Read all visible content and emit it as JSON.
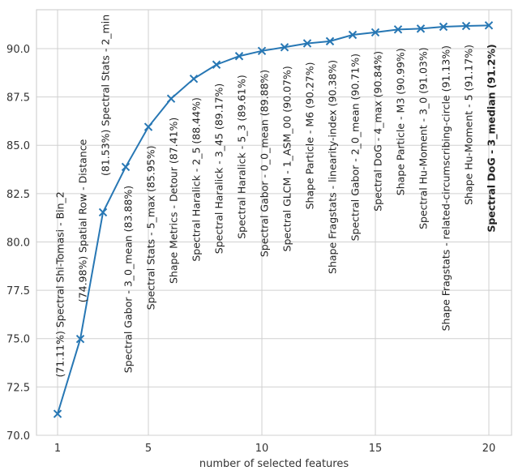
{
  "chart_data": {
    "type": "line",
    "x_label": "number of selected features",
    "x": [
      1,
      2,
      3,
      4,
      5,
      6,
      7,
      8,
      9,
      10,
      11,
      12,
      13,
      14,
      15,
      16,
      17,
      18,
      19,
      20
    ],
    "values": [
      71.11,
      74.98,
      81.53,
      83.88,
      85.95,
      87.41,
      88.44,
      89.17,
      89.61,
      89.88,
      90.07,
      90.27,
      90.38,
      90.71,
      90.84,
      90.99,
      91.03,
      91.13,
      91.17,
      91.2
    ],
    "annotations": [
      "(71.11%) Spectral Shi-Tomasi - Bin_2",
      "(74.98%) Spatial Row - Distance",
      "(81.53%) Spectral Stats - 2_min",
      "Spectral Gabor - 3_0_mean (83.88%)",
      "Spectral Stats - 5_max (85.95%)",
      "Shape Metrics - Detour (87.41%)",
      "Spectral Haralick - 2_5 (88.44%)",
      "Spectral Haralick - 3_45 (89.17%)",
      "Spectral Haralick - 5_3 (89.61%)",
      "Spectral Gabor - 0_0_mean (89.88%)",
      "Spectral GLCM - 1_ASM_00 (90.07%)",
      "Shape Particle - M6 (90.27%)",
      "Shape Fragstats - linearity-index (90.38%)",
      "Spectral Gabor - 2_0_mean (90.71%)",
      "Spectral DoG - 4_max (90.84%)",
      "Shape Particle - M3 (90.99%)",
      "Spectral Hu-Moment - 3_0 (91.03%)",
      "Shape Fragstats - related-circumscribing-circle (91.13%)",
      "Shape Hu-Moment - 5 (91.17%)",
      "Spectral DoG - 3_median (91.2%)"
    ],
    "color": "#2777b4",
    "marker": "x",
    "xlim": [
      0.07,
      21
    ],
    "xticks": [
      1,
      5,
      10,
      15,
      20
    ],
    "ylim": [
      70,
      92.01
    ],
    "yticks": [
      {
        "value": 70,
        "label": "70.0"
      },
      {
        "value": 72.5,
        "label": "72.5"
      },
      {
        "value": 75,
        "label": "75.0"
      },
      {
        "value": 77.5,
        "label": "77.5"
      },
      {
        "value": 80,
        "label": "80.0"
      },
      {
        "value": 82.5,
        "label": "82.5"
      },
      {
        "value": 85,
        "label": "85.0"
      },
      {
        "value": 87.5,
        "label": "87.5"
      },
      {
        "value": 90,
        "label": "90.0"
      }
    ],
    "grid": true
  }
}
